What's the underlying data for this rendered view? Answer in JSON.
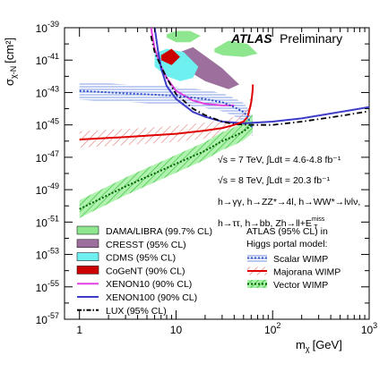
{
  "chart_data": {
    "type": "line",
    "title_bold": "ATLAS",
    "title_rest": "Preliminary",
    "ylabel_main": "σ",
    "ylabel_sub": "χ-N",
    "ylabel_unit": "[cm²]",
    "xlabel_main": "m",
    "xlabel_sub": "χ",
    "xlabel_unit": "[GeV]",
    "x_scale": "log",
    "y_scale": "log",
    "xlim": [
      0.7,
      1000
    ],
    "ylim": [
      1e-57,
      1e-39
    ],
    "x_ticks": [
      {
        "value": 1,
        "label": "1"
      },
      {
        "value": 10,
        "label": "10"
      },
      {
        "value": 100,
        "label_base": "10",
        "label_exp": "2"
      },
      {
        "value": 1000,
        "label_base": "10",
        "label_exp": "3"
      }
    ],
    "y_ticks": [
      {
        "value": -39,
        "label_base": "10",
        "label_exp": "-39"
      },
      {
        "value": -41,
        "label_base": "10",
        "label_exp": "-41"
      },
      {
        "value": -43,
        "label_base": "10",
        "label_exp": "-43"
      },
      {
        "value": -45,
        "label_base": "10",
        "label_exp": "-45"
      },
      {
        "value": -47,
        "label_base": "10",
        "label_exp": "-47"
      },
      {
        "value": -49,
        "label_base": "10",
        "label_exp": "-49"
      },
      {
        "value": -51,
        "label_base": "10",
        "label_exp": "-51"
      },
      {
        "value": -53,
        "label_base": "10",
        "label_exp": "-53"
      },
      {
        "value": -55,
        "label_base": "10",
        "label_exp": "-55"
      },
      {
        "value": -57,
        "label_base": "10",
        "label_exp": "-57"
      }
    ],
    "annotations": {
      "line1": "√s = 7 TeV, ∫Ldt = 4.6-4.8 fb⁻¹",
      "line2": "√s = 8 TeV, ∫Ldt = 20.3 fb⁻¹",
      "line3": "h→γγ, h→ZZ*→4l, h→WW*→lνlν,",
      "line4": "h→ττ, h→bb, Zh→ll+E",
      "line4_sub": "T",
      "line4_sup": "miss"
    },
    "legend_left": [
      {
        "label": "DAMA/LIBRA (99.7% CL)",
        "color": "#8ee68e",
        "style": "fill"
      },
      {
        "label": "CRESST (95% CL)",
        "color": "#9c6f9c",
        "style": "fill"
      },
      {
        "label": "CDMS (95% CL)",
        "color": "#6ff0f0",
        "style": "fill"
      },
      {
        "label": "CoGeNT (90% CL)",
        "color": "#cc0000",
        "style": "fill"
      },
      {
        "label": "XENON10 (90% CL)",
        "color": "#e040e0",
        "style": "line"
      },
      {
        "label": "XENON100 (90% CL)",
        "color": "#3c3cc8",
        "style": "line"
      },
      {
        "label": "LUX (95% CL)",
        "color": "#000000",
        "style": "dashdot"
      }
    ],
    "legend_right_title1": "ATLAS (95% CL) in",
    "legend_right_title2": "Higgs portal model:",
    "legend_right": [
      {
        "label": "Scalar WIMP",
        "color": "#3050c8",
        "style": "band"
      },
      {
        "label": "Majorana WIMP",
        "color": "#e00000",
        "style": "band"
      },
      {
        "label": "Vector WIMP",
        "color": "#00b000",
        "style": "band"
      }
    ],
    "series": [
      {
        "name": "XENON10 (90% CL)",
        "color": "#e040e0",
        "style": "line",
        "x": [
          5.5,
          6,
          7,
          8,
          10,
          15,
          20,
          30,
          40
        ],
        "logy": [
          -39.0,
          -40.3,
          -41.4,
          -42.1,
          -42.9,
          -43.5,
          -43.7,
          -43.8,
          -43.8
        ]
      },
      {
        "name": "XENON100 (90% CL)",
        "color": "#3c3cc8",
        "style": "line",
        "x": [
          6,
          6.5,
          7,
          8,
          10,
          15,
          20,
          30,
          50,
          100,
          200,
          500,
          1000
        ],
        "logy": [
          -39.0,
          -40.4,
          -41.5,
          -42.6,
          -43.4,
          -44.2,
          -44.5,
          -44.8,
          -44.9,
          -44.8,
          -44.6,
          -44.2,
          -43.9
        ]
      },
      {
        "name": "LUX (95% CL)",
        "color": "#000000",
        "style": "dashdot",
        "x": [
          5.5,
          6,
          7,
          8,
          10,
          15,
          20,
          30,
          40,
          60,
          100,
          200,
          500,
          1000
        ],
        "logy": [
          -39.5,
          -40.5,
          -41.4,
          -42.1,
          -43.1,
          -44.0,
          -44.4,
          -44.8,
          -44.95,
          -45.0,
          -45.0,
          -44.8,
          -44.45,
          -44.15
        ]
      },
      {
        "name": "Majorana WIMP",
        "color": "#e00000",
        "style": "band_line",
        "x": [
          1,
          3,
          10,
          20,
          30,
          40,
          50,
          55,
          58,
          60,
          61,
          62,
          62.5
        ],
        "logy": [
          -45.9,
          -45.75,
          -45.55,
          -45.35,
          -45.2,
          -45.0,
          -44.8,
          -44.5,
          -44.0,
          -43.6,
          -43.3,
          -42.9,
          -42.5
        ]
      },
      {
        "name": "Scalar WIMP",
        "color": "#3050c8",
        "style": "band_line",
        "x": [
          1,
          3,
          10,
          20,
          30,
          40,
          50,
          55,
          58,
          60,
          62
        ],
        "logy": [
          -42.9,
          -43.05,
          -43.2,
          -43.4,
          -43.6,
          -43.9,
          -44.2,
          -44.5,
          -44.8,
          -45.0,
          -45.2
        ]
      },
      {
        "name": "Vector WIMP",
        "color": "#00b000",
        "style": "band_line",
        "x": [
          1,
          3,
          10,
          20,
          30,
          40,
          50,
          55,
          58,
          60,
          62
        ],
        "logy": [
          -50.2,
          -48.8,
          -47.4,
          -46.6,
          -46.0,
          -45.7,
          -45.4,
          -45.2,
          -45.1,
          -45.0,
          -44.9
        ]
      }
    ],
    "regions": [
      {
        "name": "DAMA/LIBRA (99.7% CL)",
        "color": "#8ee68e",
        "x": [
          8,
          10,
          14,
          18,
          14,
          10,
          8
        ],
        "logy": [
          -39.4,
          -39.2,
          -39.2,
          -39.5,
          -39.9,
          -39.9,
          -39.6
        ]
      },
      {
        "name": "DAMA/LIBRA (99.7% CL)",
        "color": "#8ee68e",
        "x": [
          25,
          35,
          55,
          70,
          50,
          30,
          25
        ],
        "logy": [
          -40.3,
          -39.8,
          -40.0,
          -40.6,
          -40.8,
          -40.7,
          -40.5
        ]
      },
      {
        "name": "CRESST (95% CL)",
        "color": "#9c6f9c",
        "x": [
          9,
          15,
          30,
          45,
          35,
          20,
          12,
          9
        ],
        "logy": [
          -40.7,
          -40.2,
          -41.5,
          -42.5,
          -42.8,
          -42.3,
          -41.5,
          -41.0
        ]
      },
      {
        "name": "CDMS (95% CL)",
        "color": "#6ff0f0",
        "x": [
          6,
          8,
          12,
          17,
          15,
          11,
          8,
          6
        ],
        "logy": [
          -40.6,
          -40.3,
          -40.5,
          -41.4,
          -42.1,
          -42.3,
          -42.0,
          -41.4
        ]
      },
      {
        "name": "CoGeNT (90% CL)",
        "color": "#cc0000",
        "x": [
          7,
          9,
          11,
          9,
          7
        ],
        "logy": [
          -40.7,
          -40.3,
          -40.8,
          -41.3,
          -41.0
        ]
      }
    ]
  }
}
